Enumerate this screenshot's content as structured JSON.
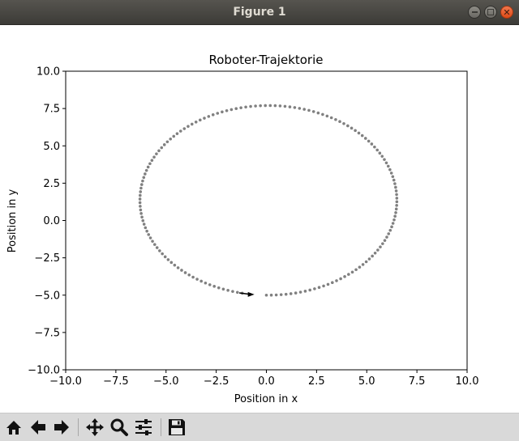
{
  "window": {
    "title": "Figure 1",
    "controls": {
      "minimize": "minimize-icon",
      "maximize": "maximize-icon",
      "close": "close-icon"
    }
  },
  "toolbar": {
    "items": [
      {
        "name": "home-button",
        "icon": "home-icon"
      },
      {
        "name": "back-button",
        "icon": "arrow-left-icon"
      },
      {
        "name": "forward-button",
        "icon": "arrow-right-icon"
      },
      {
        "name": "pan-button",
        "icon": "move-icon"
      },
      {
        "name": "zoom-button",
        "icon": "magnifier-icon"
      },
      {
        "name": "configure-subplots-button",
        "icon": "sliders-icon"
      },
      {
        "name": "save-button",
        "icon": "floppy-disk-icon"
      }
    ]
  },
  "chart_data": {
    "type": "scatter",
    "title": "Roboter-Trajektorie",
    "xlabel": "Position in x",
    "ylabel": "Position in y",
    "xlim": [
      -10,
      10
    ],
    "ylim": [
      -10,
      10
    ],
    "xticks": [
      "−10.0",
      "−7.5",
      "−5.0",
      "−2.5",
      "0.0",
      "2.5",
      "5.0",
      "7.5",
      "10.0"
    ],
    "yticks": [
      "−10.0",
      "−7.5",
      "−5.0",
      "−2.5",
      "0.0",
      "2.5",
      "5.0",
      "7.5",
      "10.0"
    ],
    "grid": false,
    "marker_color": "#808080",
    "arrow_color": "#000000",
    "trajectory": {
      "center": [
        0.1,
        1.35
      ],
      "radius_x": 6.4,
      "radius_y": 6.35,
      "start": [
        0.0,
        -5.0
      ],
      "end": [
        -1.2,
        -4.85
      ],
      "direction": "counterclockwise",
      "num_points": 160
    },
    "heading_arrow": {
      "from": [
        -1.35,
        -4.85
      ],
      "to": [
        -0.6,
        -4.95
      ]
    }
  }
}
